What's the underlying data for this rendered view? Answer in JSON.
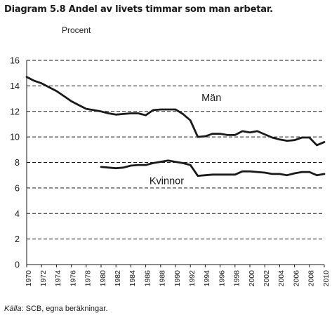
{
  "title": "Diagram 5.8 Andel av livets timmar som man arbetar.",
  "unit": "Procent",
  "source": {
    "prefix": "Källa",
    "text": ": SCB, egna beräkningar."
  },
  "chart_data": {
    "type": "line",
    "title": "Diagram 5.8 Andel av livets timmar som man arbetar.",
    "ylabel": "Procent",
    "xlabel": "",
    "ylim": [
      0,
      16
    ],
    "yticks": [
      0,
      2,
      4,
      6,
      8,
      10,
      12,
      14,
      16
    ],
    "xlim": [
      1970,
      2010
    ],
    "xticks": [
      1970,
      1972,
      1974,
      1976,
      1978,
      1980,
      1982,
      1984,
      1986,
      1988,
      1990,
      1992,
      1994,
      1996,
      1998,
      2000,
      2002,
      2004,
      2006,
      2008,
      2010
    ],
    "grid": "horizontal dashed",
    "series": [
      {
        "name": "Män",
        "color": "#1a1a1a",
        "x": [
          1970,
          1971,
          1972,
          1973,
          1974,
          1975,
          1976,
          1977,
          1978,
          1979,
          1980,
          1981,
          1982,
          1983,
          1984,
          1985,
          1986,
          1987,
          1988,
          1989,
          1990,
          1991,
          1992,
          1993,
          1994,
          1995,
          1996,
          1997,
          1998,
          1999,
          2000,
          2001,
          2002,
          2003,
          2004,
          2005,
          2006,
          2007,
          2008,
          2009,
          2010
        ],
        "values": [
          14.7,
          14.4,
          14.2,
          13.9,
          13.6,
          13.2,
          12.8,
          12.5,
          12.2,
          12.1,
          12.0,
          11.85,
          11.75,
          11.8,
          11.85,
          11.85,
          11.7,
          12.1,
          12.15,
          12.15,
          12.15,
          11.8,
          11.3,
          10.0,
          10.05,
          10.25,
          10.25,
          10.15,
          10.15,
          10.45,
          10.35,
          10.45,
          10.2,
          9.95,
          9.8,
          9.7,
          9.75,
          9.95,
          9.95,
          9.35,
          9.6
        ]
      },
      {
        "name": "Kvinnor",
        "color": "#1a1a1a",
        "x": [
          1980,
          1981,
          1982,
          1983,
          1984,
          1985,
          1986,
          1987,
          1988,
          1989,
          1990,
          1991,
          1992,
          1993,
          1994,
          1995,
          1996,
          1997,
          1998,
          1999,
          2000,
          2001,
          2002,
          2003,
          2004,
          2005,
          2006,
          2007,
          2008,
          2009,
          2010
        ],
        "values": [
          7.65,
          7.6,
          7.55,
          7.6,
          7.75,
          7.8,
          7.8,
          7.95,
          8.05,
          8.15,
          8.05,
          7.95,
          7.8,
          6.95,
          7.0,
          7.05,
          7.05,
          7.05,
          7.05,
          7.3,
          7.3,
          7.25,
          7.2,
          7.1,
          7.1,
          7.0,
          7.15,
          7.25,
          7.25,
          7.0,
          7.1
        ]
      }
    ],
    "annotations": [
      {
        "text": "Män",
        "x": 1993.5,
        "y": 12.8
      },
      {
        "text": "Kvinnor",
        "x": 1986.5,
        "y": 6.3
      }
    ]
  }
}
